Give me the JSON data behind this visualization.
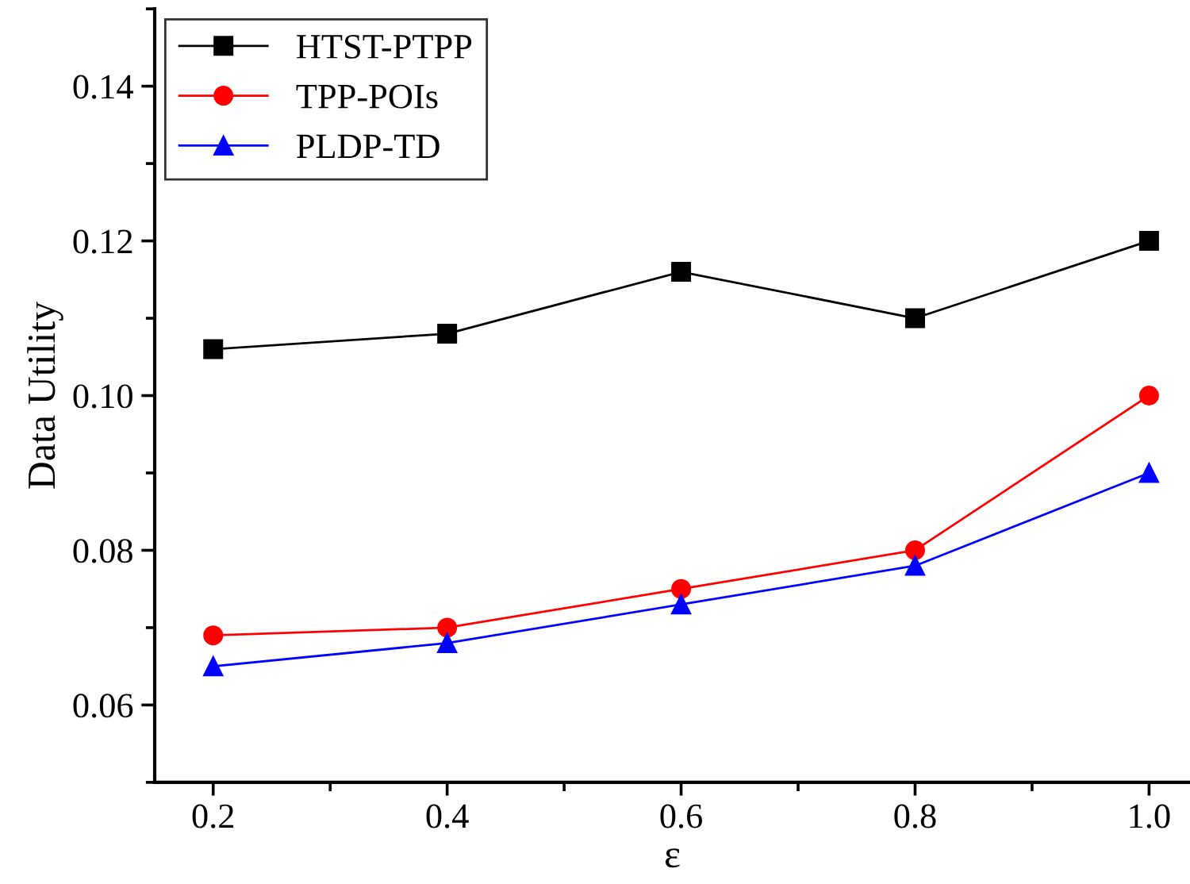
{
  "chart_data": {
    "type": "line",
    "xlabel": "ε",
    "ylabel": "Data Utility",
    "x": [
      0.2,
      0.4,
      0.6,
      0.8,
      1.0
    ],
    "series": [
      {
        "name": "HTST-PTPP",
        "color": "#000000",
        "marker": "square",
        "values": [
          0.106,
          0.108,
          0.116,
          0.11,
          0.12
        ]
      },
      {
        "name": "TPP-POIs",
        "color": "#ff0000",
        "marker": "circle",
        "values": [
          0.069,
          0.07,
          0.075,
          0.08,
          0.1
        ]
      },
      {
        "name": "PLDP-TD",
        "color": "#0000ff",
        "marker": "triangle",
        "values": [
          0.065,
          0.068,
          0.073,
          0.078,
          0.09
        ]
      }
    ],
    "xlim": [
      0.15,
      1.035
    ],
    "ylim": [
      0.05,
      0.15
    ],
    "xticks": [
      {
        "value": 0.2,
        "label": "0.2"
      },
      {
        "value": 0.4,
        "label": "0.4"
      },
      {
        "value": 0.6,
        "label": "0.6"
      },
      {
        "value": 0.8,
        "label": "0.8"
      },
      {
        "value": 1.0,
        "label": "1.0"
      }
    ],
    "yticks": [
      {
        "value": 0.06,
        "label": "0.06"
      },
      {
        "value": 0.08,
        "label": "0.08"
      },
      {
        "value": 0.1,
        "label": "0.10"
      },
      {
        "value": 0.12,
        "label": "0.12"
      },
      {
        "value": 0.14,
        "label": "0.14"
      }
    ],
    "grid": false,
    "legend": "top left",
    "line_style": "solid"
  }
}
